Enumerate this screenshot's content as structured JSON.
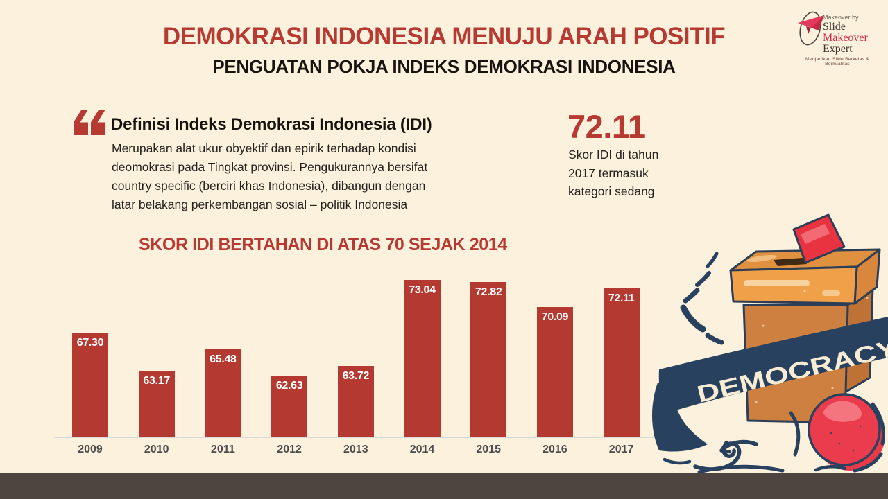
{
  "header": {
    "title": "DEMOKRASI INDONESIA MENUJU ARAH POSITIF",
    "subtitle": "PENGUATAN POKJA INDEKS DEMOKRASI INDONESIA"
  },
  "logo": {
    "makeover_by": "Makeover by",
    "word1": "Slide",
    "word2": "Makeover",
    "word3": "Expert",
    "tagline": "Menjadikan Slide Berkelas & Berkualitas"
  },
  "definition": {
    "heading": "Definisi Indeks Demokrasi Indonesia (IDI)",
    "body_lines": [
      "Merupakan alat ukur obyektif dan epirik terhadap kondisi",
      "deomokrasi pada Tingkat provinsi. Pengukurannya bersifat",
      "country specific (berciri khas Indonesia), dibangun dengan",
      "latar belakang perkembangan sosial – politik Indonesia"
    ]
  },
  "highlight": {
    "score": "72.11",
    "caption_lines": [
      "Skor IDI di tahun",
      "2017 termasuk",
      "kategori sedang"
    ]
  },
  "chart_data": {
    "type": "bar",
    "title": "SKOR IDI BERTAHAN DI ATAS 70 SEJAK 2014",
    "categories": [
      "2009",
      "2010",
      "2011",
      "2012",
      "2013",
      "2014",
      "2015",
      "2016",
      "2017"
    ],
    "values": [
      67.3,
      63.17,
      65.48,
      62.63,
      63.72,
      73.04,
      72.82,
      70.09,
      72.11
    ],
    "value_labels": [
      "67.30",
      "63.17",
      "65.48",
      "62.63",
      "63.72",
      "73.04",
      "72.82",
      "70.09",
      "72.11"
    ],
    "xlabel": "",
    "ylabel": "",
    "ylim": [
      56,
      75
    ],
    "grid": false,
    "legend": false,
    "bar_color": "#b43a31",
    "value_label_color": "#ffffff",
    "value_label_position": "inside-top"
  },
  "illustration": {
    "banner_text": "DEMOCRACY"
  },
  "colors": {
    "background": "#fcf1dc",
    "accent_red": "#b73a32",
    "navy": "#27415e",
    "footer": "#4e4540",
    "box_orange": "#cd8040",
    "ballot_red": "#e93340",
    "ball_red": "#ea3c4d"
  }
}
